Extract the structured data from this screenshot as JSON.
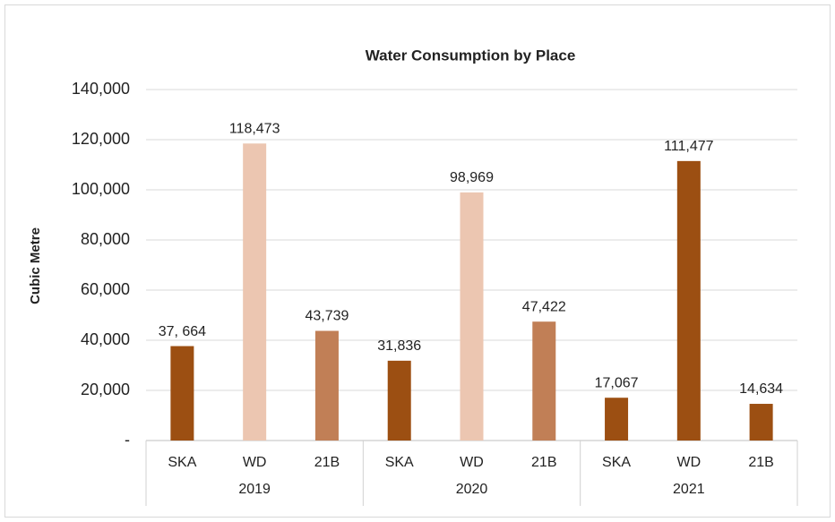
{
  "chart_data": {
    "type": "bar",
    "title": "Water Consumption by Place",
    "y_label": "Cubic Metre",
    "categories": [
      "SKA",
      "WD",
      "21B",
      "SKA",
      "WD",
      "21B",
      "SKA",
      "WD",
      "21B"
    ],
    "groups": [
      "2019",
      "2020",
      "2021"
    ],
    "values": [
      37664,
      118473,
      43739,
      31836,
      98969,
      47422,
      17067,
      111477,
      14634
    ],
    "value_labels": [
      "37, 664",
      "118,473",
      "43,739",
      "31,836",
      "98,969",
      "47,422",
      "17,067",
      "111,477",
      "14,634"
    ],
    "colors": [
      "#9c4f12",
      "#ecc6b1",
      "#c17f56",
      "#9c4f12",
      "#ecc6b1",
      "#c17f56",
      "#9c4f12",
      "#9c4f12",
      "#9c4f12"
    ],
    "ylim": [
      0,
      140000
    ],
    "yticks": [
      {
        "value": 0,
        "label": "-"
      },
      {
        "value": 20000,
        "label": "20,000"
      },
      {
        "value": 40000,
        "label": "40,000"
      },
      {
        "value": 60000,
        "label": "60,000"
      },
      {
        "value": 80000,
        "label": "80,000"
      },
      {
        "value": 100000,
        "label": "100,000"
      },
      {
        "value": 120000,
        "label": "120,000"
      },
      {
        "value": 140000,
        "label": "140,000"
      }
    ],
    "grid": true
  }
}
